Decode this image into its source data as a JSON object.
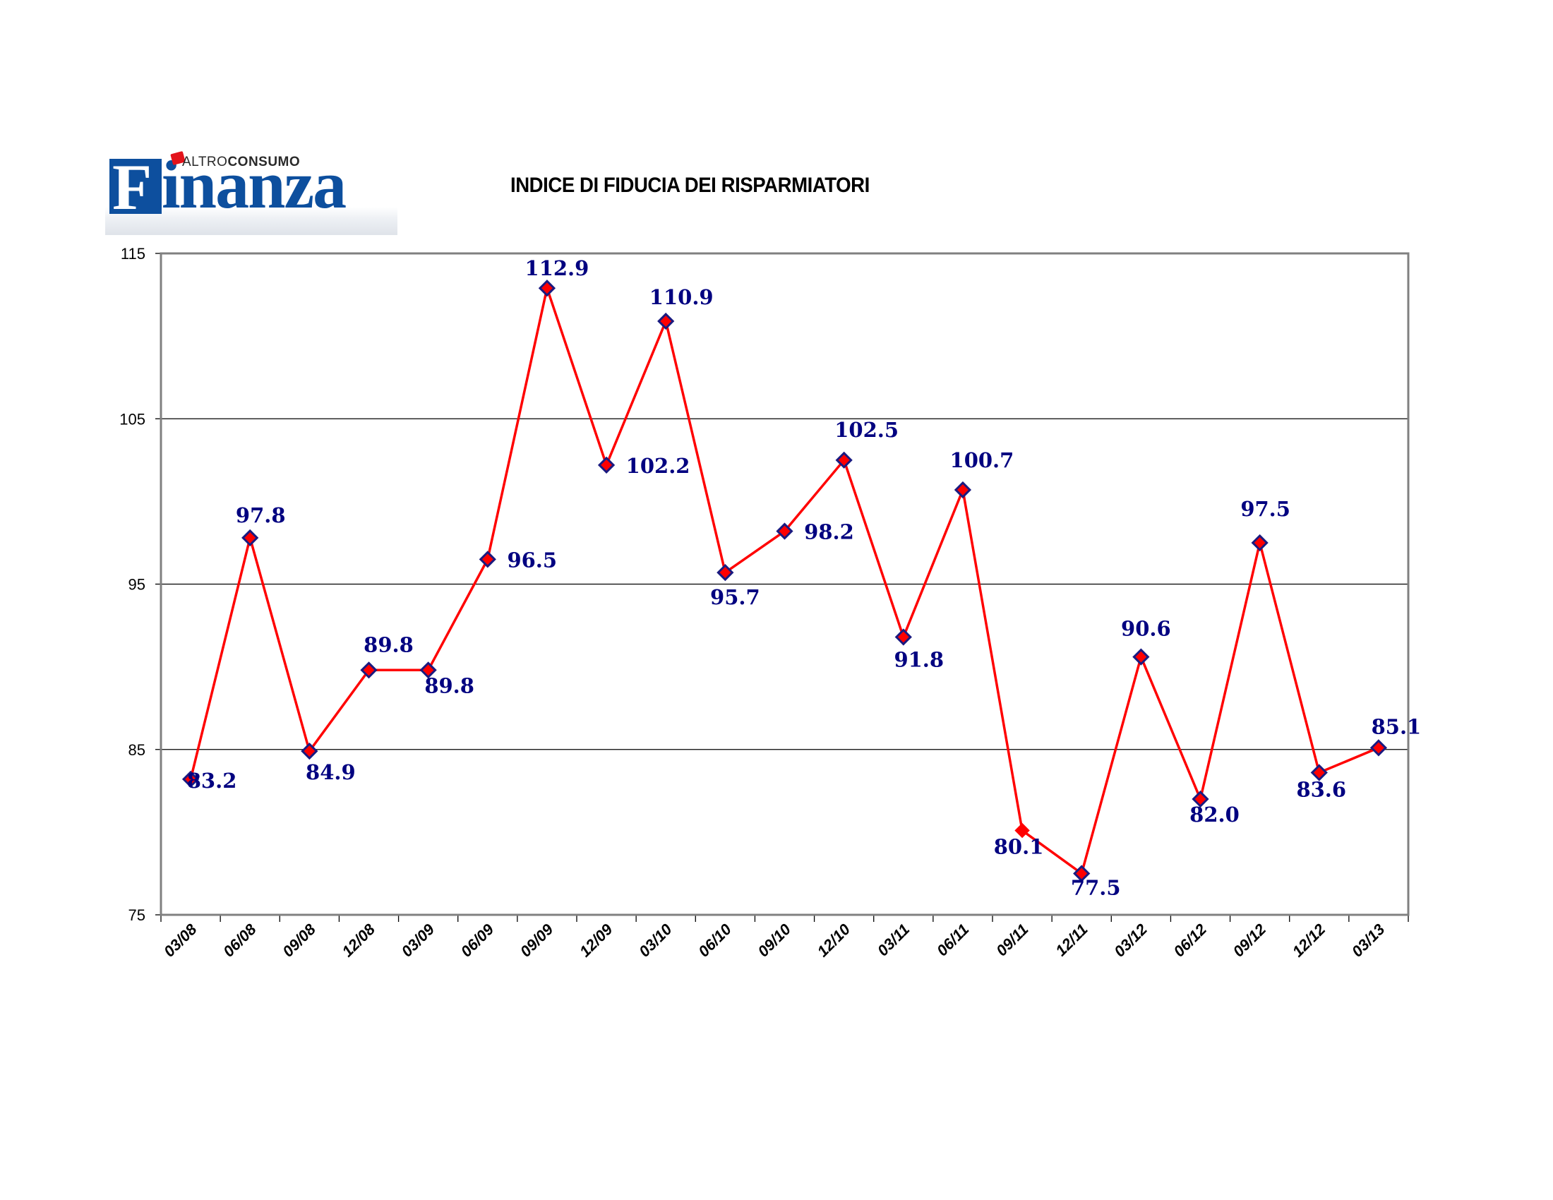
{
  "logo": {
    "brand_main": "Finanza",
    "brand_initial": "F",
    "brand_rest": "inanza",
    "brand_sub_light": "ALTRO",
    "brand_sub_bold": "CONSUMO",
    "brand_color": "#0d4f9e",
    "accent_color": "#e3131b"
  },
  "chart_data": {
    "type": "line",
    "title": "INDICE DI FIDUCIA DEI RISPARMIATORI",
    "xlabel": "",
    "ylabel": "",
    "ylim": [
      75,
      115
    ],
    "yticks": [
      75,
      85,
      95,
      105,
      115
    ],
    "grid": true,
    "legend": "none",
    "categories": [
      "03/08",
      "06/08",
      "09/08",
      "12/08",
      "03/09",
      "06/09",
      "09/09",
      "12/09",
      "03/10",
      "06/10",
      "09/10",
      "12/10",
      "03/11",
      "06/11",
      "09/11",
      "12/11",
      "03/12",
      "06/12",
      "09/12",
      "12/12",
      "03/13"
    ],
    "series": [
      {
        "name": "Indice di fiducia",
        "values": [
          83.2,
          97.8,
          84.9,
          89.8,
          89.8,
          96.5,
          112.9,
          102.2,
          110.9,
          95.7,
          98.2,
          102.5,
          91.8,
          100.7,
          80.1,
          77.5,
          90.6,
          82.0,
          97.5,
          83.6,
          85.1
        ],
        "data_labels": [
          "83.2",
          "97.8",
          "84.9",
          "89.8",
          "89.8",
          "96.5",
          "112.9",
          "102.2",
          "110.9",
          "95.7",
          "98.2",
          "102.5",
          "91.8",
          "100.7",
          "80.1",
          "77.5",
          "90.6",
          "82.0",
          "97.5",
          "83.6",
          "85.1"
        ],
        "label_position": [
          "right",
          "above",
          "below",
          "above",
          "below",
          "right",
          "above",
          "right",
          "above",
          "below",
          "right",
          "above",
          "below",
          "above",
          "below",
          "below",
          "above",
          "below",
          "above",
          "below",
          "above"
        ],
        "line_color": "#ff0000",
        "marker": "diamond",
        "marker_fill": "#ff0000",
        "marker_edge": "#1a1a80",
        "unbordered_marker_categories": [
          "09/11"
        ],
        "label_color": "#000080"
      }
    ]
  }
}
